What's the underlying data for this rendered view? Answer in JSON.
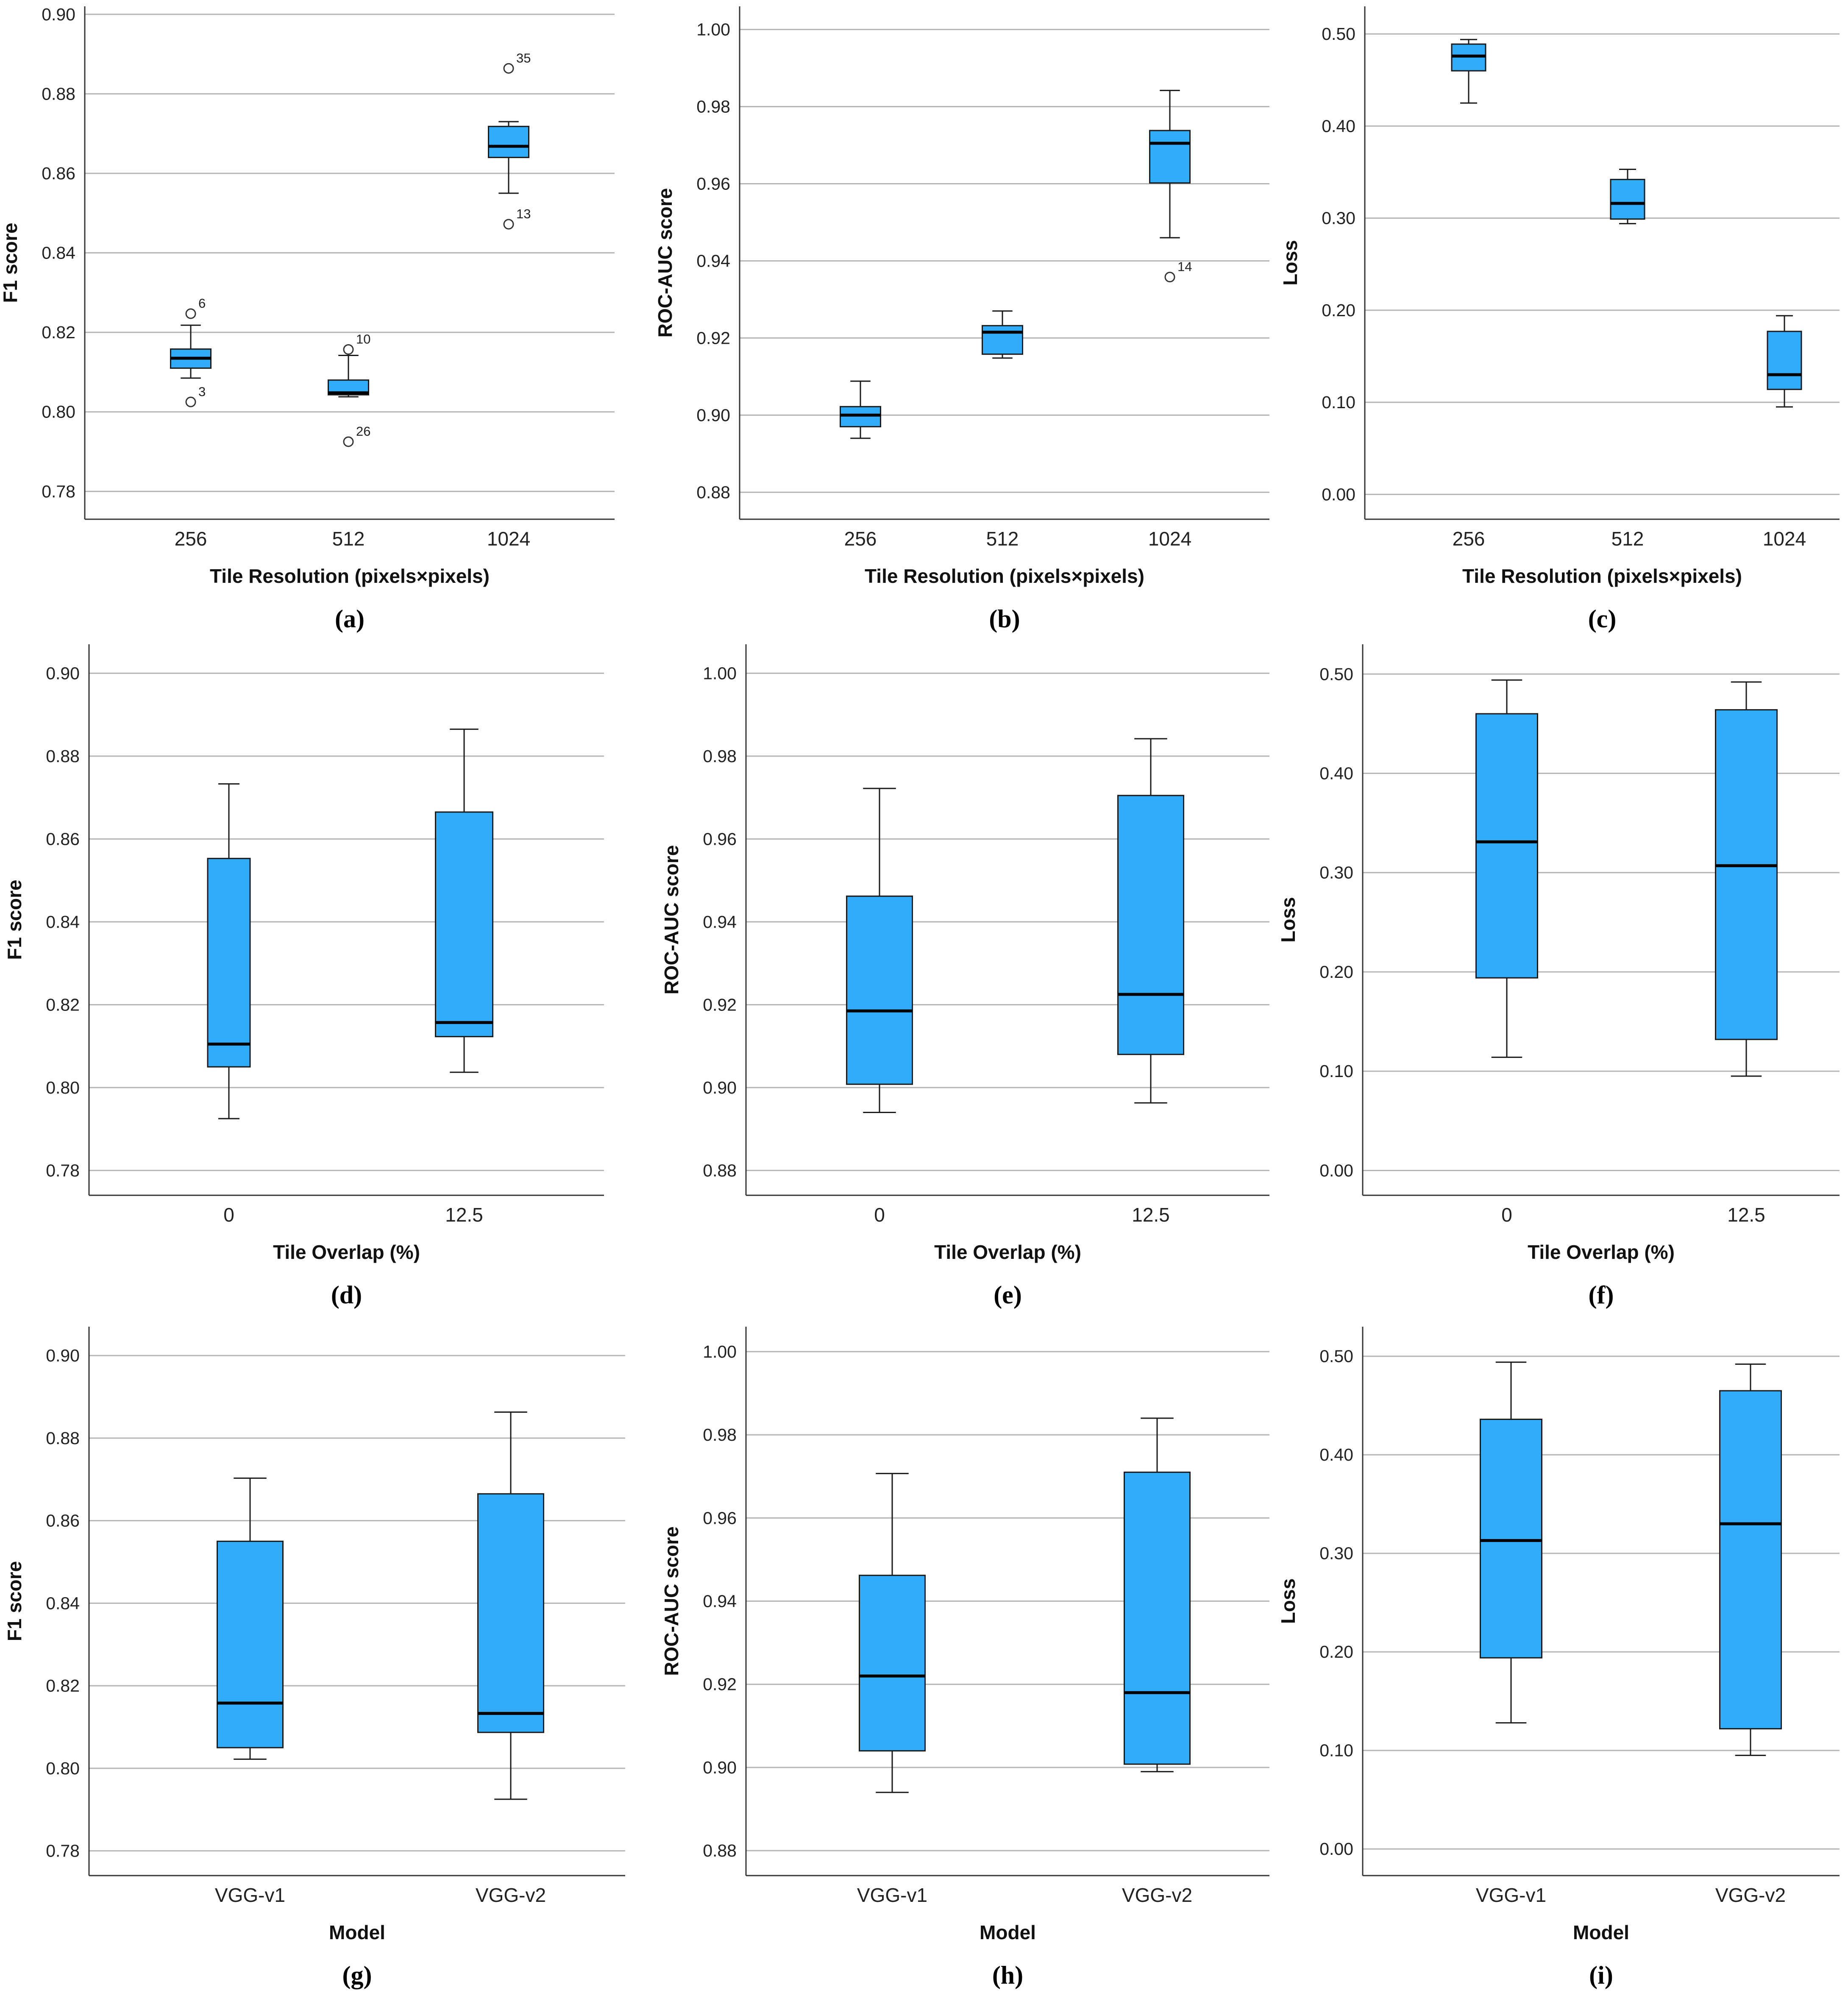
{
  "colors": {
    "box_fill": "#30ACFA",
    "box_edge": "#1a1a1a",
    "median": "#000000",
    "grid": "#b5b5b5",
    "axis": "#333333"
  },
  "chart_data": [
    {
      "type": "box",
      "panel_label": "(a)",
      "xlabel": "Tile Resolution (pixels×pixels)",
      "ylabel": "F1 score",
      "ylim": [
        0.773,
        0.902
      ],
      "yticks": [
        "0.78",
        "0.80",
        "0.82",
        "0.84",
        "0.86",
        "0.88",
        "0.90"
      ],
      "categories": [
        "256",
        "512",
        "1024"
      ],
      "boxes": [
        {
          "whisker_low": 0.8085,
          "q1": 0.811,
          "median": 0.8135,
          "q3": 0.8158,
          "whisker_high": 0.8218,
          "outliers": [
            {
              "value": 0.8247,
              "label": "6"
            },
            {
              "value": 0.8025,
              "label": "3"
            }
          ]
        },
        {
          "whisker_low": 0.8038,
          "q1": 0.8043,
          "median": 0.8048,
          "q3": 0.808,
          "whisker_high": 0.8142,
          "outliers": [
            {
              "value": 0.8157,
              "label": "10"
            },
            {
              "value": 0.7925,
              "label": "26"
            }
          ]
        },
        {
          "whisker_low": 0.855,
          "q1": 0.864,
          "median": 0.8668,
          "q3": 0.8718,
          "whisker_high": 0.873,
          "outliers": [
            {
              "value": 0.8864,
              "label": "35"
            },
            {
              "value": 0.8472,
              "label": "13"
            }
          ]
        }
      ]
    },
    {
      "type": "box",
      "panel_label": "(b)",
      "xlabel": "Tile Resolution (pixels×pixels)",
      "ylabel": "ROC-AUC score",
      "ylim": [
        0.873,
        1.006
      ],
      "yticks": [
        "0.88",
        "0.90",
        "0.92",
        "0.94",
        "0.96",
        "0.98",
        "1.00"
      ],
      "categories": [
        "256",
        "512",
        "1024"
      ],
      "boxes": [
        {
          "whisker_low": 0.894,
          "q1": 0.897,
          "median": 0.9,
          "q3": 0.9022,
          "whisker_high": 0.9088,
          "outliers": []
        },
        {
          "whisker_low": 0.9148,
          "q1": 0.9158,
          "median": 0.9215,
          "q3": 0.9232,
          "whisker_high": 0.927,
          "outliers": []
        },
        {
          "whisker_low": 0.946,
          "q1": 0.9602,
          "median": 0.9705,
          "q3": 0.9738,
          "whisker_high": 0.9842,
          "outliers": [
            {
              "value": 0.9358,
              "label": "14"
            }
          ]
        }
      ]
    },
    {
      "type": "box",
      "panel_label": "(c)",
      "xlabel": "Tile Resolution (pixels×pixels)",
      "ylabel": "Loss",
      "ylim": [
        -0.027,
        0.53
      ],
      "yticks": [
        "0.00",
        "0.10",
        "0.20",
        "0.30",
        "0.40",
        "0.50"
      ],
      "categories": [
        "256",
        "512",
        "1024"
      ],
      "boxes": [
        {
          "whisker_low": 0.425,
          "q1": 0.46,
          "median": 0.476,
          "q3": 0.489,
          "whisker_high": 0.494,
          "outliers": []
        },
        {
          "whisker_low": 0.294,
          "q1": 0.299,
          "median": 0.316,
          "q3": 0.342,
          "whisker_high": 0.353,
          "outliers": []
        },
        {
          "whisker_low": 0.095,
          "q1": 0.114,
          "median": 0.13,
          "q3": 0.177,
          "whisker_high": 0.194,
          "outliers": []
        }
      ]
    },
    {
      "type": "box",
      "panel_label": "(d)",
      "xlabel": "Tile Overlap (%)",
      "ylabel": "F1 score",
      "ylim": [
        0.774,
        0.907
      ],
      "yticks": [
        "0.78",
        "0.80",
        "0.82",
        "0.84",
        "0.86",
        "0.88",
        "0.90"
      ],
      "categories": [
        "0",
        "12.5"
      ],
      "boxes": [
        {
          "whisker_low": 0.7925,
          "q1": 0.805,
          "median": 0.8105,
          "q3": 0.8553,
          "whisker_high": 0.8733,
          "outliers": []
        },
        {
          "whisker_low": 0.8037,
          "q1": 0.8123,
          "median": 0.8157,
          "q3": 0.8665,
          "whisker_high": 0.8865,
          "outliers": []
        }
      ]
    },
    {
      "type": "box",
      "panel_label": "(e)",
      "xlabel": "Tile Overlap (%)",
      "ylabel": "ROC-AUC score",
      "ylim": [
        0.874,
        1.007
      ],
      "yticks": [
        "0.88",
        "0.90",
        "0.92",
        "0.94",
        "0.96",
        "0.98",
        "1.00"
      ],
      "categories": [
        "0",
        "12.5"
      ],
      "boxes": [
        {
          "whisker_low": 0.894,
          "q1": 0.9008,
          "median": 0.9185,
          "q3": 0.9462,
          "whisker_high": 0.9722,
          "outliers": []
        },
        {
          "whisker_low": 0.8963,
          "q1": 0.908,
          "median": 0.9225,
          "q3": 0.9705,
          "whisker_high": 0.9842,
          "outliers": []
        }
      ]
    },
    {
      "type": "box",
      "panel_label": "(f)",
      "xlabel": "Tile Overlap (%)",
      "ylabel": "Loss",
      "ylim": [
        -0.025,
        0.53
      ],
      "yticks": [
        "0.00",
        "0.10",
        "0.20",
        "0.30",
        "0.40",
        "0.50"
      ],
      "categories": [
        "0",
        "12.5"
      ],
      "boxes": [
        {
          "whisker_low": 0.114,
          "q1": 0.194,
          "median": 0.331,
          "q3": 0.46,
          "whisker_high": 0.494,
          "outliers": []
        },
        {
          "whisker_low": 0.095,
          "q1": 0.132,
          "median": 0.307,
          "q3": 0.464,
          "whisker_high": 0.492,
          "outliers": []
        }
      ]
    },
    {
      "type": "box",
      "panel_label": "(g)",
      "xlabel": "Model",
      "ylabel": "F1 score",
      "ylim": [
        0.774,
        0.907
      ],
      "yticks": [
        "0.78",
        "0.80",
        "0.82",
        "0.84",
        "0.86",
        "0.88",
        "0.90"
      ],
      "categories": [
        "VGG-v1",
        "VGG-v2"
      ],
      "boxes": [
        {
          "whisker_low": 0.8022,
          "q1": 0.805,
          "median": 0.8158,
          "q3": 0.855,
          "whisker_high": 0.8703,
          "outliers": []
        },
        {
          "whisker_low": 0.7925,
          "q1": 0.8087,
          "median": 0.8133,
          "q3": 0.8665,
          "whisker_high": 0.8863,
          "outliers": []
        }
      ]
    },
    {
      "type": "box",
      "panel_label": "(h)",
      "xlabel": "Model",
      "ylabel": "ROC-AUC score",
      "ylim": [
        0.874,
        1.006
      ],
      "yticks": [
        "0.88",
        "0.90",
        "0.92",
        "0.94",
        "0.96",
        "0.98",
        "1.00"
      ],
      "categories": [
        "VGG-v1",
        "VGG-v2"
      ],
      "boxes": [
        {
          "whisker_low": 0.894,
          "q1": 0.904,
          "median": 0.922,
          "q3": 0.9462,
          "whisker_high": 0.9707,
          "outliers": []
        },
        {
          "whisker_low": 0.899,
          "q1": 0.9008,
          "median": 0.918,
          "q3": 0.971,
          "whisker_high": 0.984,
          "outliers": []
        }
      ]
    },
    {
      "type": "box",
      "panel_label": "(i)",
      "xlabel": "Model",
      "ylabel": "Loss",
      "ylim": [
        -0.027,
        0.53
      ],
      "yticks": [
        "0.00",
        "0.10",
        "0.20",
        "0.30",
        "0.40",
        "0.50"
      ],
      "categories": [
        "VGG-v1",
        "VGG-v2"
      ],
      "boxes": [
        {
          "whisker_low": 0.128,
          "q1": 0.194,
          "median": 0.313,
          "q3": 0.436,
          "whisker_high": 0.494,
          "outliers": []
        },
        {
          "whisker_low": 0.095,
          "q1": 0.122,
          "median": 0.33,
          "q3": 0.465,
          "whisker_high": 0.492,
          "outliers": []
        }
      ]
    }
  ]
}
